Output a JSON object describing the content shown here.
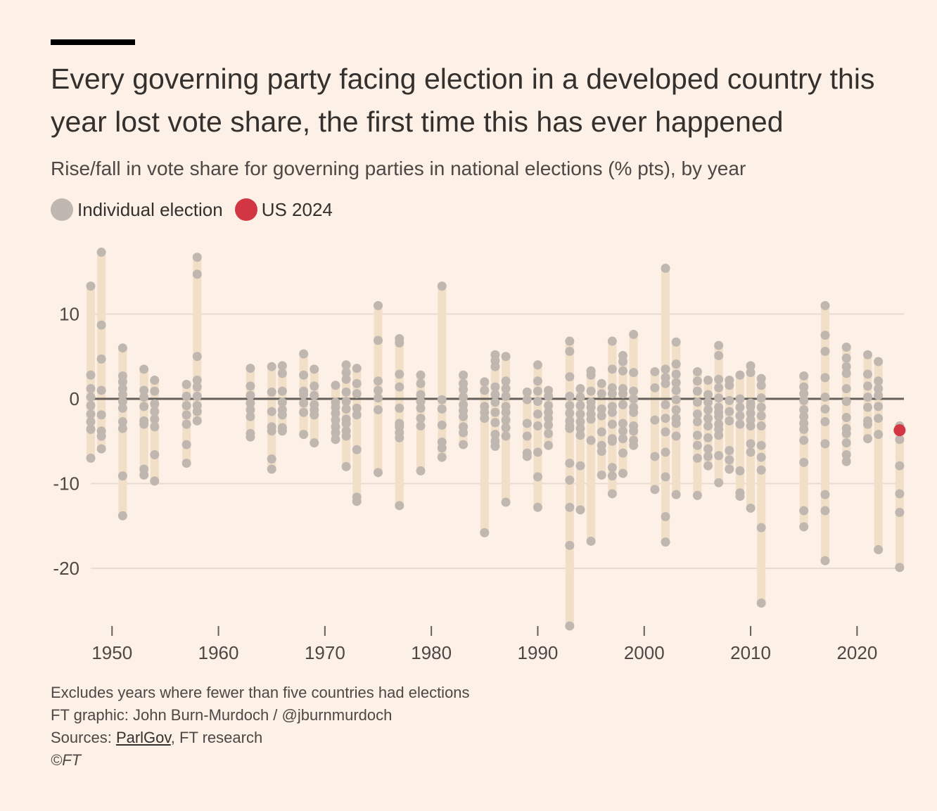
{
  "title": "Every governing party facing election in a developed country this year lost vote share, the first time this has ever happened",
  "subtitle": "Rise/fall in vote share for governing parties in national elections (% pts), by year",
  "legend": [
    {
      "label": "Individual election",
      "color": "#bfb7b0"
    },
    {
      "label": "US 2024",
      "color": "#d23642"
    }
  ],
  "colors": {
    "range_bar": "#f2dfc8",
    "dot": "#bfb7b0",
    "highlight": "#d23642",
    "zero_line": "#66605c",
    "grid": "#e8dcd2"
  },
  "footer": {
    "note": "Excludes years where fewer than five countries had elections",
    "credit": "FT graphic: John Burn-Murdoch / @jburnmurdoch",
    "sources_prefix": "Sources: ",
    "sources_link": "ParlGov",
    "sources_rest": ", FT research",
    "copyright": "©FT"
  },
  "chart_data": {
    "type": "scatter",
    "x_label": "",
    "y_label": "",
    "xlim": [
      1947.5,
      2024.5
    ],
    "ylim": [
      -27,
      18
    ],
    "x_ticks": [
      1950,
      1960,
      1970,
      1980,
      1990,
      2000,
      2010,
      2020
    ],
    "y_ticks": [
      10,
      0,
      -10,
      -20
    ],
    "y_tick_labels": [
      "10",
      "0",
      "-10",
      "-20"
    ],
    "highlight": {
      "label": "US 2024",
      "x": 2024,
      "y": -3.7
    },
    "years": [
      {
        "year": 1948,
        "values": [
          13.3,
          2.8,
          1.2,
          0.2,
          -0.8,
          -1.8,
          -2.7,
          -3.6,
          -7.0
        ]
      },
      {
        "year": 1949,
        "values": [
          17.3,
          8.7,
          4.7,
          1.0,
          -1.9,
          -3.8,
          -4.4,
          -5.9
        ]
      },
      {
        "year": 1951,
        "values": [
          6.0,
          2.7,
          2.0,
          1.2,
          0.5,
          -0.3,
          -1.1,
          -2.7,
          -3.5,
          -9.1,
          -13.8
        ]
      },
      {
        "year": 1953,
        "values": [
          3.5,
          1.0,
          0.2,
          -0.9,
          -2.6,
          -3.0,
          -8.3,
          -9.0
        ]
      },
      {
        "year": 1954,
        "values": [
          2.2,
          0.9,
          -0.6,
          -1.5,
          -2.4,
          -3.3,
          -6.6,
          -9.7
        ]
      },
      {
        "year": 1957,
        "values": [
          1.7,
          0.3,
          -0.8,
          -1.9,
          -3.0,
          -5.4,
          -7.6
        ]
      },
      {
        "year": 1958,
        "values": [
          16.7,
          14.7,
          5.0,
          2.2,
          1.4,
          0.3,
          -0.8,
          -1.5,
          -2.6
        ]
      },
      {
        "year": 1963,
        "values": [
          3.6,
          1.5,
          0.4,
          -0.5,
          -1.3,
          -2.1,
          -4.1,
          -4.5
        ]
      },
      {
        "year": 1965,
        "values": [
          3.8,
          0.8,
          -1.5,
          -3.3,
          -3.8,
          -7.1,
          -8.3
        ]
      },
      {
        "year": 1966,
        "values": [
          3.9,
          3.0,
          0.9,
          -0.4,
          -1.3,
          -1.9,
          -3.4,
          -3.8
        ]
      },
      {
        "year": 1968,
        "values": [
          5.3,
          2.8,
          0.9,
          0.5,
          -0.5,
          -1.6,
          -4.2
        ]
      },
      {
        "year": 1969,
        "values": [
          3.5,
          1.5,
          0.4,
          -0.7,
          -1.3,
          -1.9,
          -5.2
        ]
      },
      {
        "year": 1971,
        "values": [
          1.6,
          -0.4,
          -1.0,
          -1.7,
          -2.5,
          -3.3,
          -4.0,
          -4.8
        ]
      },
      {
        "year": 1972,
        "values": [
          4.0,
          3.1,
          2.3,
          0.8,
          -0.3,
          -1.2,
          -2.4,
          -2.9,
          -3.8,
          -4.4,
          -8.0
        ]
      },
      {
        "year": 1973,
        "values": [
          3.6,
          1.8,
          0.6,
          -1.1,
          -1.9,
          -6.0,
          -11.6,
          -12.1
        ]
      },
      {
        "year": 1975,
        "values": [
          11.0,
          6.9,
          2.1,
          1.0,
          0.1,
          -1.3,
          -8.7
        ]
      },
      {
        "year": 1977,
        "values": [
          7.1,
          6.6,
          2.9,
          1.4,
          -1.1,
          -2.9,
          -3.3,
          -4.0,
          -4.6,
          -12.6
        ]
      },
      {
        "year": 1979,
        "values": [
          2.8,
          1.8,
          0.5,
          -0.3,
          -1.1,
          -2.3,
          -3.2,
          -8.5
        ]
      },
      {
        "year": 1981,
        "values": [
          13.3,
          -0.1,
          -1.2,
          -3.1,
          -5.1,
          -5.8,
          -6.9
        ]
      },
      {
        "year": 1983,
        "values": [
          2.8,
          1.8,
          1.1,
          0.2,
          -0.7,
          -1.4,
          -2.1,
          -3.3,
          -4.0,
          -5.4
        ]
      },
      {
        "year": 1985,
        "values": [
          2.0,
          1.0,
          -0.9,
          -1.6,
          -2.3,
          -15.8
        ]
      },
      {
        "year": 1986,
        "values": [
          5.2,
          4.5,
          3.8,
          1.4,
          0.5,
          -0.4,
          -1.6,
          -2.8,
          -4.2,
          -5.0,
          -5.6
        ]
      },
      {
        "year": 1987,
        "values": [
          5.0,
          2.1,
          1.2,
          0.3,
          -0.9,
          -1.6,
          -2.5,
          -3.4,
          -4.4,
          -12.2
        ]
      },
      {
        "year": 1989,
        "values": [
          0.8,
          -0.1,
          -2.9,
          -4.4,
          -6.4,
          -6.8
        ]
      },
      {
        "year": 1990,
        "values": [
          4.0,
          2.1,
          0.9,
          -0.3,
          -1.8,
          -3.2,
          -6.3,
          -9.2,
          -12.8
        ]
      },
      {
        "year": 1991,
        "values": [
          1.0,
          0.3,
          -0.8,
          -1.6,
          -2.3,
          -3.1,
          -4.1,
          -5.5
        ]
      },
      {
        "year": 1993,
        "values": [
          6.8,
          5.6,
          2.6,
          0.3,
          -0.8,
          -1.7,
          -2.6,
          -3.2,
          -3.5,
          -7.6,
          -9.6,
          -12.8,
          -17.3,
          -26.8
        ]
      },
      {
        "year": 1994,
        "values": [
          1.2,
          0.2,
          -0.8,
          -1.8,
          -2.7,
          -3.5,
          -4.3,
          -7.9,
          -13.1
        ]
      },
      {
        "year": 1995,
        "values": [
          3.3,
          2.8,
          0.9,
          -0.4,
          -1.0,
          -1.8,
          -2.4,
          -4.9,
          -16.8
        ]
      },
      {
        "year": 1996,
        "values": [
          1.8,
          0.6,
          -1.2,
          -2.0,
          -3.9,
          -5.5,
          -6.2,
          -9.0
        ]
      },
      {
        "year": 1997,
        "values": [
          6.8,
          3.5,
          1.3,
          0.6,
          -0.9,
          -1.6,
          -3.0,
          -4.7,
          -5.0,
          -8.1,
          -9.1,
          -11.2
        ]
      },
      {
        "year": 1998,
        "values": [
          5.1,
          4.4,
          3.3,
          1.2,
          0.6,
          -0.7,
          -2.9,
          -3.8,
          -4.7,
          -6.4,
          -8.8
        ]
      },
      {
        "year": 1999,
        "values": [
          7.6,
          3.1,
          0.9,
          0.0,
          -1.0,
          -1.6,
          -3.2,
          -3.8,
          -4.9,
          -5.5
        ]
      },
      {
        "year": 2001,
        "values": [
          3.2,
          1.3,
          -2.5,
          -6.8,
          -10.7
        ]
      },
      {
        "year": 2002,
        "values": [
          15.4,
          3.5,
          2.5,
          1.8,
          -0.7,
          -2.3,
          -3.9,
          -6.3,
          -9.2,
          -13.9,
          -16.9
        ]
      },
      {
        "year": 2003,
        "values": [
          6.7,
          4.1,
          2.9,
          1.9,
          1.0,
          -0.1,
          -1.3,
          -2.3,
          -2.9,
          -4.4,
          -11.3
        ]
      },
      {
        "year": 2005,
        "values": [
          3.2,
          2.1,
          0.9,
          -0.4,
          -1.8,
          -2.7,
          -4.3,
          -5.5,
          -7.0,
          -11.4
        ]
      },
      {
        "year": 2006,
        "values": [
          2.2,
          0.5,
          -0.4,
          -1.3,
          -2.3,
          -3.2,
          -4.6,
          -5.9,
          -6.8,
          -7.9
        ]
      },
      {
        "year": 2007,
        "values": [
          6.3,
          5.1,
          2.3,
          1.3,
          0.1,
          -1.0,
          -1.6,
          -2.1,
          -3.0,
          -3.6,
          -4.3,
          -6.7,
          -9.9
        ]
      },
      {
        "year": 2008,
        "values": [
          2.2,
          1.6,
          -0.2,
          -1.5,
          -2.6,
          -6.1,
          -7.2,
          -8.3
        ]
      },
      {
        "year": 2009,
        "values": [
          2.8,
          0.0,
          -1.0,
          -2.0,
          -3.0,
          -8.5,
          -11.1,
          -11.5
        ]
      },
      {
        "year": 2010,
        "values": [
          3.9,
          3.1,
          -0.5,
          -0.9,
          -1.7,
          -2.5,
          -3.2,
          -5.3,
          -6.3,
          -12.9
        ]
      },
      {
        "year": 2011,
        "values": [
          2.4,
          1.6,
          0.1,
          -1.0,
          -2.0,
          -3.2,
          -5.5,
          -6.9,
          -8.4,
          -15.2,
          -24.1
        ]
      },
      {
        "year": 2015,
        "values": [
          2.7,
          1.4,
          0.6,
          -0.2,
          -1.3,
          -2.1,
          -2.9,
          -3.6,
          -4.9,
          -7.5,
          -13.2,
          -15.1
        ]
      },
      {
        "year": 2017,
        "values": [
          11.0,
          7.5,
          5.6,
          2.5,
          0.2,
          -1.2,
          -2.7,
          -5.3,
          -11.3,
          -13.2,
          -19.1
        ]
      },
      {
        "year": 2019,
        "values": [
          6.1,
          4.8,
          3.8,
          3.0,
          1.2,
          -0.3,
          -2.2,
          -3.5,
          -4.1,
          -5.2,
          -6.6,
          -7.4
        ]
      },
      {
        "year": 2021,
        "values": [
          5.2,
          2.9,
          1.5,
          0.2,
          -1.0,
          -2.6,
          -3.0,
          -4.7
        ]
      },
      {
        "year": 2022,
        "values": [
          4.4,
          2.1,
          1.2,
          0.4,
          -0.9,
          -2.3,
          -4.2,
          -17.8
        ]
      },
      {
        "year": 2024,
        "values": [
          -3.2,
          -4.8,
          -7.9,
          -11.2,
          -13.4,
          -19.9
        ]
      }
    ]
  }
}
